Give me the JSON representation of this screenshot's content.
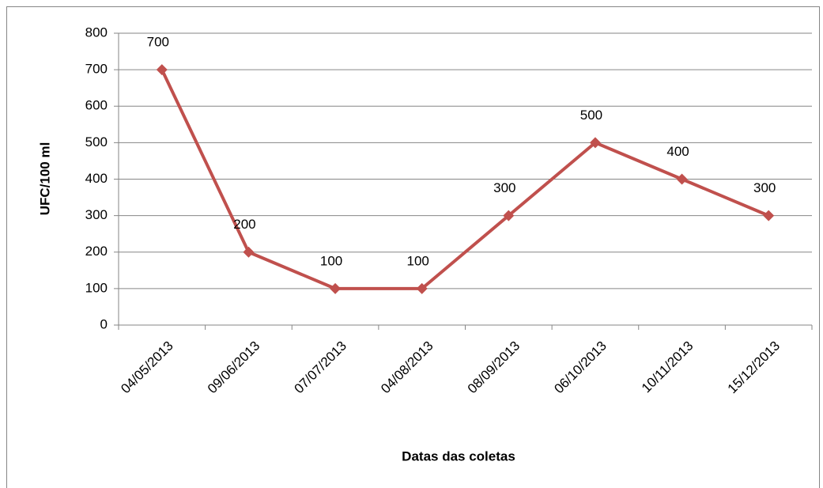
{
  "chart_data": {
    "type": "line",
    "x_label": "Datas das coletas",
    "y_label": "UFC/100 ml",
    "categories": [
      "04/05/2013",
      "09/06/2013",
      "07/07/2013",
      "04/08/2013",
      "08/09/2013",
      "06/10/2013",
      "10/11/2013",
      "15/12/2013"
    ],
    "values": [
      700,
      200,
      100,
      100,
      300,
      500,
      400,
      300
    ],
    "color": "#c0504d",
    "ylim": [
      0,
      800
    ],
    "yticks": [
      0,
      100,
      200,
      300,
      400,
      500,
      600,
      700,
      800
    ],
    "grid": true
  }
}
